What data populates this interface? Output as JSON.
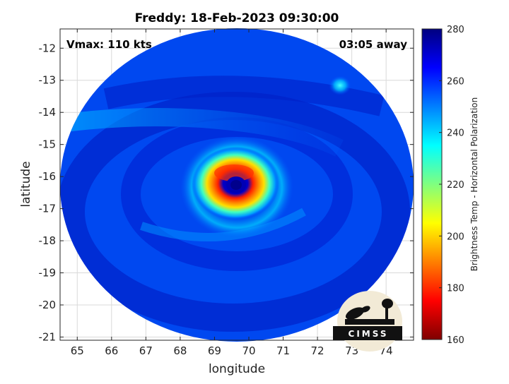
{
  "chart_data": {
    "type": "heatmap",
    "title": "Freddy: 18-Feb-2023 09:30:00",
    "annotation_left": "Vmax: 110 kts",
    "annotation_right": "03:05 away",
    "xlabel": "longitude",
    "ylabel": "latitude",
    "xlim": [
      64.5,
      74.8
    ],
    "ylim": [
      -21.1,
      -11.4
    ],
    "xticks": [
      65,
      66,
      67,
      68,
      69,
      70,
      71,
      72,
      73,
      74
    ],
    "yticks": [
      -12,
      -13,
      -14,
      -15,
      -16,
      -17,
      -18,
      -19,
      -20,
      -21
    ],
    "grid": true,
    "colorbar": {
      "label": "Brightness Temp - Horizontal Polarization",
      "range": [
        160,
        280
      ],
      "ticks": [
        280,
        260,
        240,
        220,
        200,
        180,
        160
      ],
      "colormap": "jet"
    },
    "features": {
      "storm_center": [
        69.7,
        -16.1
      ],
      "eye_brightness_temp": 265,
      "eyewall_min_brightness_temp": 178,
      "background_brightness_temp": 262,
      "swath_center": [
        69.7,
        -16.3
      ],
      "secondary_convection": [
        72.8,
        -12.9
      ]
    },
    "logo_text": "CIMSS",
    "colors": {
      "jet_stops": [
        "#00007f",
        "#0000ff",
        "#00ffff",
        "#ffff00",
        "#ff0000",
        "#7f0000"
      ]
    }
  }
}
